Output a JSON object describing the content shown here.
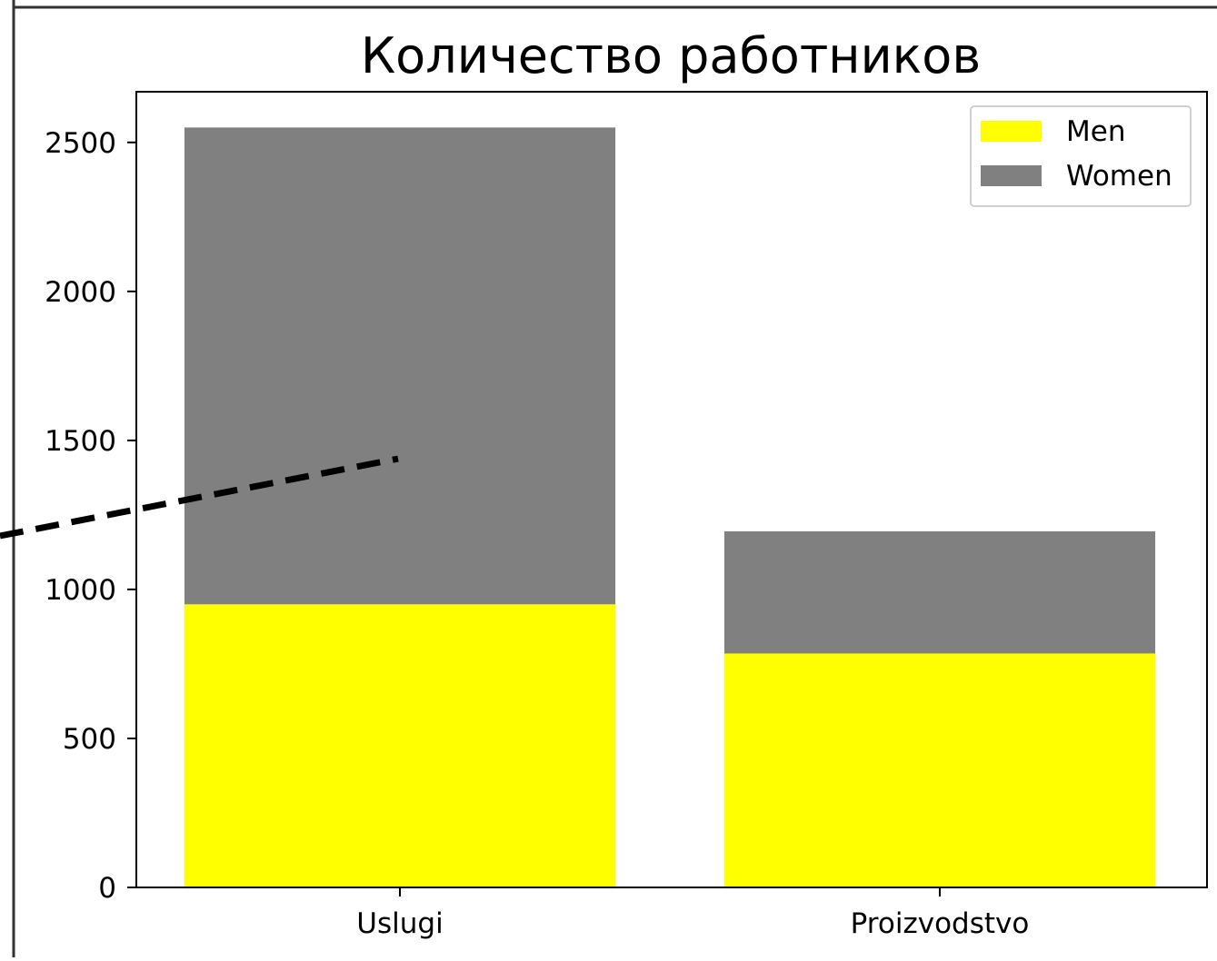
{
  "chart_data": {
    "type": "bar",
    "stacked": true,
    "title": "Количество работников",
    "xlabel": "",
    "ylabel": "",
    "categories": [
      "Uslugi",
      "Proizvodstvo"
    ],
    "series": [
      {
        "name": "Men",
        "color": "#ffff00",
        "values": [
          950,
          785
        ]
      },
      {
        "name": "Women",
        "color": "#808080",
        "values": [
          1600,
          410
        ]
      }
    ],
    "ylim": [
      0,
      2670
    ],
    "yticks": [
      0,
      500,
      1000,
      1500,
      2000,
      2500
    ],
    "legend_position": "top-right",
    "grid": false
  }
}
